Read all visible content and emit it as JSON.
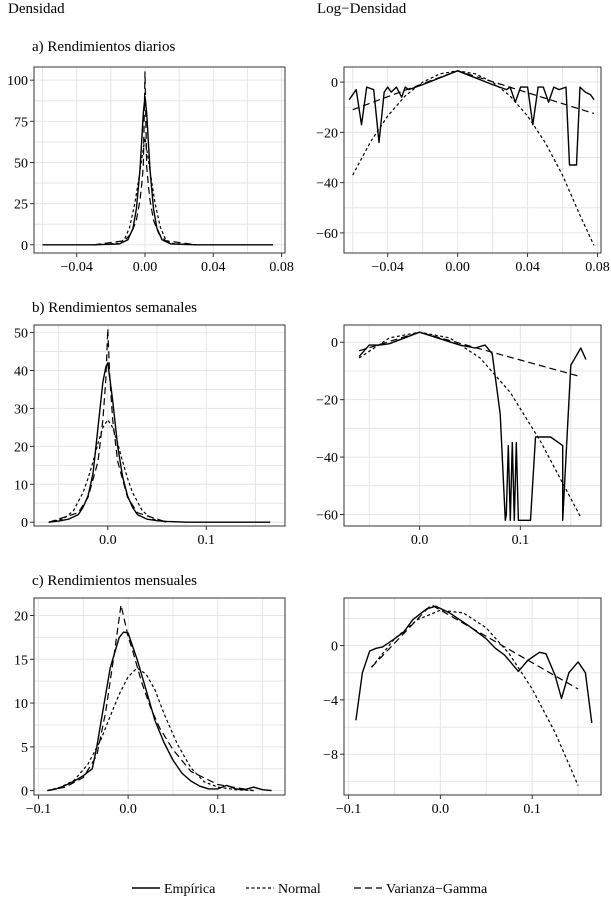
{
  "figure": {
    "column_titles": [
      "Densidad",
      "Log−Densidad"
    ],
    "row_titles": [
      "a) Rendimientos diarios",
      "b) Rendimientos semanales",
      "c) Rendimientos mensuales"
    ],
    "legend": [
      {
        "label": "Empírica",
        "style": "solid"
      },
      {
        "label": "Normal",
        "style": "dotted"
      },
      {
        "label": "Varianza−Gamma",
        "style": "dashed"
      }
    ]
  },
  "chart_data": [
    {
      "id": "a-density",
      "type": "line",
      "title": "a) Rendimientos diarios",
      "column": "Densidad",
      "xlim": [
        -0.065,
        0.082
      ],
      "ylim": [
        -5,
        108
      ],
      "xticks": [
        -0.04,
        0.0,
        0.04,
        0.08
      ],
      "xtick_labels": [
        "−0.04",
        "0.00",
        "0.04",
        "0.08"
      ],
      "yticks": [
        0,
        25,
        50,
        75,
        100
      ],
      "ytick_labels": [
        "0",
        "25",
        "50",
        "75",
        "100"
      ],
      "series": [
        {
          "name": "Empírica",
          "style": "solid",
          "x": [
            -0.06,
            -0.03,
            -0.015,
            -0.01,
            -0.007,
            -0.005,
            -0.003,
            -0.002,
            -0.001,
            0,
            0.001,
            0.002,
            0.003,
            0.005,
            0.007,
            0.01,
            0.015,
            0.03,
            0.075
          ],
          "y": [
            0,
            0,
            0.5,
            3,
            10,
            22,
            45,
            62,
            80,
            90,
            80,
            62,
            45,
            22,
            10,
            3,
            0.5,
            0,
            0
          ]
        },
        {
          "name": "Normal",
          "style": "dotted",
          "x": [
            -0.03,
            -0.015,
            -0.012,
            -0.009,
            -0.006,
            -0.004,
            -0.002,
            0,
            0.002,
            0.004,
            0.006,
            0.009,
            0.012,
            0.015,
            0.03
          ],
          "y": [
            0,
            0.9,
            3.4,
            10.5,
            24.7,
            37.8,
            51.5,
            65,
            51.5,
            37.8,
            24.7,
            10.5,
            3.4,
            0.9,
            0
          ]
        },
        {
          "name": "Varianza−Gamma",
          "style": "dashed",
          "x": [
            -0.03,
            -0.012,
            -0.008,
            -0.005,
            -0.003,
            -0.002,
            -0.001,
            0,
            0.001,
            0.002,
            0.003,
            0.005,
            0.008,
            0.012,
            0.03
          ],
          "y": [
            0,
            2.5,
            6.9,
            15,
            26.8,
            35.8,
            47.6,
            105,
            47.6,
            35.8,
            26.8,
            15,
            6.9,
            2.5,
            0
          ]
        }
      ]
    },
    {
      "id": "a-logdensity",
      "type": "line",
      "title": "a) Rendimientos diarios",
      "column": "Log−Densidad",
      "xlim": [
        -0.065,
        0.082
      ],
      "ylim": [
        -68,
        6
      ],
      "xticks": [
        -0.04,
        0.0,
        0.04,
        0.08
      ],
      "xtick_labels": [
        "−0.04",
        "0.00",
        "0.04",
        "0.08"
      ],
      "yticks": [
        0,
        -20,
        -40,
        -60
      ],
      "ytick_labels": [
        "0",
        "−20",
        "−40",
        "−60"
      ],
      "series": [
        {
          "name": "Empírica",
          "style": "solid",
          "x": [
            -0.062,
            -0.058,
            -0.055,
            -0.052,
            -0.048,
            -0.045,
            -0.042,
            -0.04,
            -0.038,
            -0.035,
            -0.032,
            -0.03,
            -0.028,
            -0.02,
            0,
            0.02,
            0.028,
            0.03,
            0.033,
            0.036,
            0.04,
            0.043,
            0.046,
            0.049,
            0.052,
            0.055,
            0.058,
            0.062,
            0.064,
            0.068,
            0.07,
            0.073,
            0.076,
            0.078
          ],
          "y": [
            -7,
            -3,
            -17,
            -2,
            -3,
            -24,
            -4,
            -2,
            -4,
            -2,
            -6,
            -2,
            -3,
            -1,
            4.5,
            -1,
            -3,
            -2,
            -8,
            -2,
            -2,
            -17,
            -2,
            -2,
            -8,
            -2,
            -3,
            -2,
            -33,
            -33,
            -2,
            -4,
            -5,
            -7
          ]
        },
        {
          "name": "Normal",
          "style": "dotted",
          "x": [
            -0.06,
            -0.05,
            -0.04,
            -0.03,
            -0.02,
            -0.01,
            0,
            0.01,
            0.02,
            0.03,
            0.04,
            0.05,
            0.06,
            0.07,
            0.078
          ],
          "y": [
            -37,
            -24,
            -13.5,
            -5.5,
            0,
            3.3,
            4.5,
            3.3,
            0,
            -5.5,
            -13.5,
            -24,
            -37,
            -53,
            -65
          ]
        },
        {
          "name": "Varianza−Gamma",
          "style": "dashed",
          "x": [
            -0.06,
            0,
            0.078
          ],
          "y": [
            -11,
            4.5,
            -12.5
          ]
        }
      ]
    },
    {
      "id": "b-density",
      "type": "line",
      "title": "b) Rendimientos semanales",
      "column": "Densidad",
      "xlim": [
        -0.075,
        0.18
      ],
      "ylim": [
        -1,
        52
      ],
      "xticks": [
        0.0,
        0.1
      ],
      "xtick_labels": [
        "0.0",
        "0.1"
      ],
      "yticks": [
        0,
        10,
        20,
        30,
        40,
        50
      ],
      "ytick_labels": [
        "0",
        "10",
        "20",
        "30",
        "40",
        "50"
      ],
      "series": [
        {
          "name": "Empírica",
          "style": "solid",
          "x": [
            -0.06,
            -0.05,
            -0.04,
            -0.03,
            -0.025,
            -0.02,
            -0.015,
            -0.01,
            -0.005,
            -0.002,
            0,
            0.002,
            0.005,
            0.01,
            0.015,
            0.02,
            0.025,
            0.03,
            0.04,
            0.05,
            0.06,
            0.08,
            0.1,
            0.12,
            0.14,
            0.165
          ],
          "y": [
            0,
            0.3,
            0.8,
            2,
            4,
            7,
            13,
            25,
            37,
            41,
            42,
            38,
            32,
            20,
            12,
            7,
            4,
            2,
            0.8,
            0.4,
            0.2,
            0,
            0,
            0,
            0,
            0
          ]
        },
        {
          "name": "Normal",
          "style": "dotted",
          "x": [
            -0.06,
            -0.045,
            -0.035,
            -0.025,
            -0.02,
            -0.015,
            -0.01,
            -0.005,
            0,
            0.005,
            0.01,
            0.015,
            0.02,
            0.025,
            0.035,
            0.045,
            0.06
          ],
          "y": [
            0,
            0.9,
            3,
            7.9,
            11.6,
            16,
            20.8,
            25,
            27,
            25,
            20.8,
            16,
            11.6,
            7.9,
            3,
            0.9,
            0
          ]
        },
        {
          "name": "Varianza−Gamma",
          "style": "dashed",
          "x": [
            -0.06,
            -0.03,
            -0.02,
            -0.01,
            -0.005,
            -0.002,
            0,
            0.002,
            0.005,
            0.01,
            0.02,
            0.03,
            0.06
          ],
          "y": [
            0,
            2.5,
            6.6,
            16,
            27,
            38,
            51,
            38,
            27,
            16,
            6.6,
            2.5,
            0
          ]
        }
      ]
    },
    {
      "id": "b-logdensity",
      "type": "line",
      "title": "b) Rendimientos semanales",
      "column": "Log−Densidad",
      "xlim": [
        -0.075,
        0.18
      ],
      "ylim": [
        -64,
        6
      ],
      "xticks": [
        0.0,
        0.1
      ],
      "xtick_labels": [
        "0.0",
        "0.1"
      ],
      "yticks": [
        0,
        -20,
        -40,
        -60
      ],
      "ytick_labels": [
        "0",
        "−20",
        "−40",
        "−60"
      ],
      "series": [
        {
          "name": "Empírica",
          "style": "solid",
          "x": [
            -0.06,
            -0.05,
            -0.04,
            -0.03,
            0,
            0.04,
            0.055,
            0.065,
            0.072,
            0.08,
            0.085,
            0.086,
            0.088,
            0.09,
            0.092,
            0.094,
            0.096,
            0.098,
            0.1,
            0.11,
            0.115,
            0.13,
            0.142,
            0.142,
            0.15,
            0.16,
            0.165
          ],
          "y": [
            -5,
            -1,
            -1,
            -0.5,
            3.5,
            -1,
            -2,
            -1,
            -4,
            -25,
            -62,
            -60,
            -36,
            -62,
            -35,
            -62,
            -35,
            -62,
            -62,
            -62,
            -33,
            -33,
            -36,
            -62,
            -8,
            -2,
            -6
          ]
        },
        {
          "name": "Normal",
          "style": "dotted",
          "x": [
            -0.06,
            -0.03,
            0,
            0.03,
            0.06,
            0.09,
            0.12,
            0.16
          ],
          "y": [
            -5.5,
            1.5,
            3.5,
            1.5,
            -5.5,
            -17.5,
            -34.5,
            -61
          ]
        },
        {
          "name": "Varianza−Gamma",
          "style": "dashed",
          "x": [
            -0.06,
            0,
            0.16
          ],
          "y": [
            -3,
            3.5,
            -12
          ]
        }
      ]
    },
    {
      "id": "c-density",
      "type": "line",
      "title": "c) Rendimientos mensuales",
      "column": "Densidad",
      "xlim": [
        -0.105,
        0.175
      ],
      "ylim": [
        -0.5,
        22
      ],
      "xticks": [
        -0.1,
        0.0,
        0.1
      ],
      "xtick_labels": [
        "−0.1",
        "0.0",
        "0.1"
      ],
      "yticks": [
        0,
        5,
        10,
        15,
        20
      ],
      "ytick_labels": [
        "0",
        "5",
        "10",
        "15",
        "20"
      ],
      "series": [
        {
          "name": "Empírica",
          "style": "solid",
          "x": [
            -0.09,
            -0.08,
            -0.07,
            -0.06,
            -0.05,
            -0.04,
            -0.035,
            -0.03,
            -0.02,
            -0.01,
            -0.005,
            0,
            0.01,
            0.02,
            0.03,
            0.04,
            0.05,
            0.06,
            0.07,
            0.08,
            0.09,
            0.1,
            0.11,
            0.12,
            0.13,
            0.14,
            0.15,
            0.16
          ],
          "y": [
            0,
            0.2,
            0.6,
            1.1,
            1.7,
            2.5,
            5,
            8,
            14,
            17.5,
            18.1,
            18,
            15,
            11.5,
            8,
            5.5,
            3.5,
            2,
            1.1,
            0.5,
            0.2,
            0.2,
            0.6,
            0.2,
            0.1,
            0.4,
            0.1,
            0
          ]
        },
        {
          "name": "Normal",
          "style": "dotted",
          "x": [
            -0.09,
            -0.075,
            -0.06,
            -0.045,
            -0.03,
            -0.02,
            -0.01,
            0,
            0.01,
            0.02,
            0.03,
            0.04,
            0.055,
            0.07,
            0.085,
            0.1,
            0.12,
            0.14
          ],
          "y": [
            0,
            0.4,
            1.2,
            3,
            5.9,
            8.5,
            11,
            13,
            14,
            13.3,
            11.5,
            8.8,
            5.3,
            2.6,
            1,
            0.4,
            0.1,
            0
          ]
        },
        {
          "name": "Varianza−Gamma",
          "style": "dashed",
          "x": [
            -0.09,
            -0.07,
            -0.05,
            -0.035,
            -0.025,
            -0.015,
            -0.008,
            -0.003,
            0,
            0.005,
            0.015,
            0.025,
            0.035,
            0.05,
            0.07,
            0.1,
            0.14
          ],
          "y": [
            0,
            0.4,
            1.5,
            4,
            9,
            16,
            21.2,
            19,
            17.6,
            16,
            12.4,
            9.5,
            7.2,
            4.7,
            2.2,
            0.7,
            0
          ]
        }
      ]
    },
    {
      "id": "c-logdensity",
      "type": "line",
      "title": "c) Rendimientos mensuales",
      "column": "Log−Densidad",
      "xlim": [
        -0.105,
        0.175
      ],
      "ylim": [
        -11,
        3.5
      ],
      "xticks": [
        -0.1,
        0.0,
        0.1
      ],
      "xtick_labels": [
        "−0.1",
        "0.0",
        "0.1"
      ],
      "yticks": [
        0,
        -4,
        -8
      ],
      "ytick_labels": [
        "0",
        "−4",
        "−8"
      ],
      "series": [
        {
          "name": "Empírica",
          "style": "solid",
          "x": [
            -0.092,
            -0.085,
            -0.077,
            -0.07,
            -0.063,
            -0.05,
            -0.04,
            -0.03,
            -0.015,
            -0.005,
            0.01,
            0.03,
            0.05,
            0.06,
            0.07,
            0.08,
            0.085,
            0.095,
            0.108,
            0.115,
            0.125,
            0.132,
            0.14,
            0.15,
            0.158,
            0.165
          ],
          "y": [
            -5.5,
            -2,
            -0.4,
            -0.2,
            -0.1,
            0.5,
            1,
            1.9,
            2.7,
            2.9,
            2.4,
            1.5,
            0.5,
            -0.2,
            -0.7,
            -1.5,
            -1.9,
            -1.1,
            -0.5,
            -0.6,
            -2.2,
            -3.9,
            -2,
            -1.2,
            -2,
            -5.7
          ]
        },
        {
          "name": "Normal",
          "style": "dotted",
          "x": [
            -0.075,
            -0.05,
            -0.025,
            0,
            0.025,
            0.05,
            0.075,
            0.1,
            0.125,
            0.15
          ],
          "y": [
            -1.6,
            0.5,
            1.9,
            2.6,
            2.4,
            1.3,
            -0.6,
            -3.2,
            -6.4,
            -10.3
          ]
        },
        {
          "name": "Varianza−Gamma",
          "style": "dashed",
          "x": [
            -0.075,
            -0.01,
            0.15
          ],
          "y": [
            -1.6,
            3,
            -3.2
          ]
        }
      ]
    }
  ]
}
